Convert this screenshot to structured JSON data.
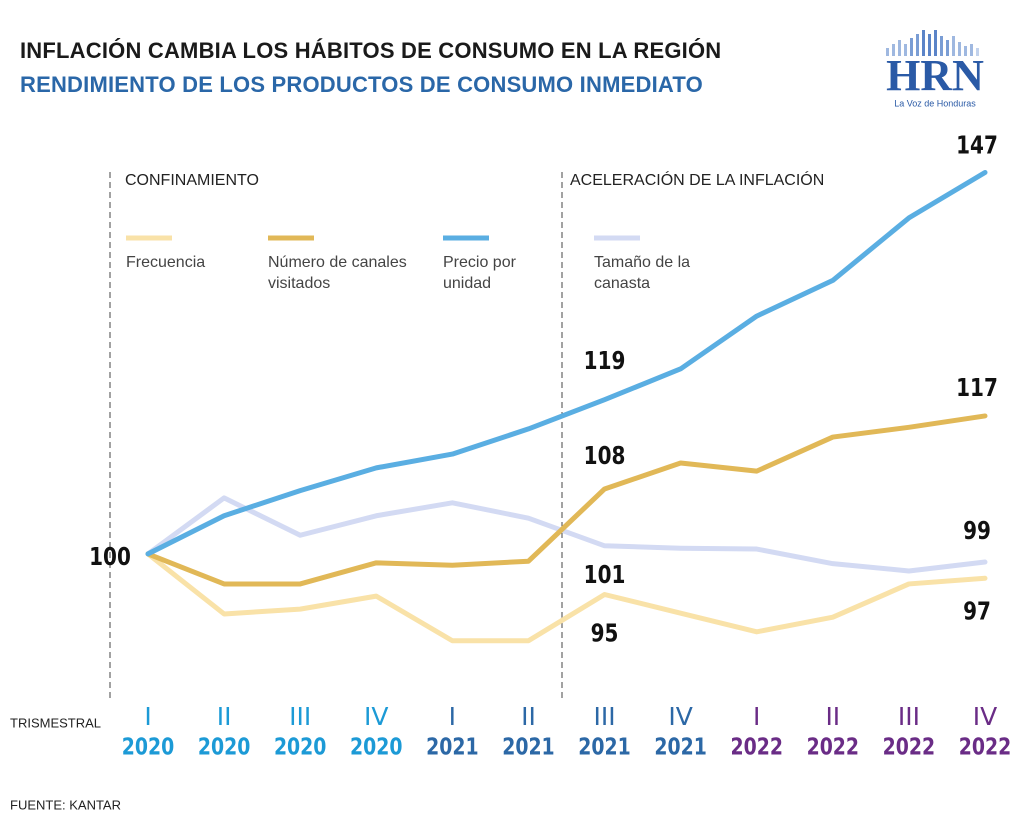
{
  "chart_data": {
    "type": "line",
    "title": "INFLACIÓN CAMBIA LOS HÁBITOS DE CONSUMO EN LA REGIÓN",
    "subtitle": "RENDIMIENTO DE LOS PRODUCTOS DE CONSUMO INMEDIATO",
    "x_label": "TRISMESTRAL",
    "source": "FUENTE: KANTAR",
    "annotations": [
      "CONFINAMIENTO",
      "ACELERACIÓN DE LA INFLACIÓN"
    ],
    "logo": {
      "text": "HRN",
      "tagline": "La Voz de Honduras"
    },
    "categories": [
      [
        "I",
        "2020"
      ],
      [
        "II",
        "2020"
      ],
      [
        "III",
        "2020"
      ],
      [
        "IV",
        "2020"
      ],
      [
        "I",
        "2021"
      ],
      [
        "II",
        "2021"
      ],
      [
        "III",
        "2021"
      ],
      [
        "IV",
        "2021"
      ],
      [
        "I",
        "2022"
      ],
      [
        "II",
        "2022"
      ],
      [
        "III",
        "2022"
      ],
      [
        "IV",
        "2022"
      ]
    ],
    "year_colors": {
      "2020": "#1c9ad6",
      "2021": "#2c68a6",
      "2022": "#6a2c86"
    },
    "ylim": [
      82,
      151
    ],
    "series": [
      {
        "name": "Frecuencia",
        "color": "#f9e2a8",
        "values": [
          100,
          92.6,
          93.2,
          94.8,
          89.3,
          89.3,
          95,
          92.7,
          90.4,
          92.2,
          96.3,
          97
        ]
      },
      {
        "name": "Número de canales visitados",
        "color": "#e1b857",
        "values": [
          100,
          96.3,
          96.3,
          98.9,
          98.6,
          99.1,
          108,
          111.2,
          110.2,
          114.4,
          115.6,
          117
        ]
      },
      {
        "name": "Precio por unidad",
        "color": "#5aaee2",
        "values": [
          100,
          104.7,
          107.8,
          110.6,
          112.3,
          115.4,
          119,
          122.8,
          129.3,
          133.7,
          141.4,
          147
        ]
      },
      {
        "name": "Tamaño de la canasta",
        "color": "#d3daf3",
        "values": [
          100,
          106.9,
          102.3,
          104.7,
          106.3,
          104.4,
          101,
          100.7,
          100.6,
          98.8,
          97.9,
          99
        ]
      }
    ]
  }
}
